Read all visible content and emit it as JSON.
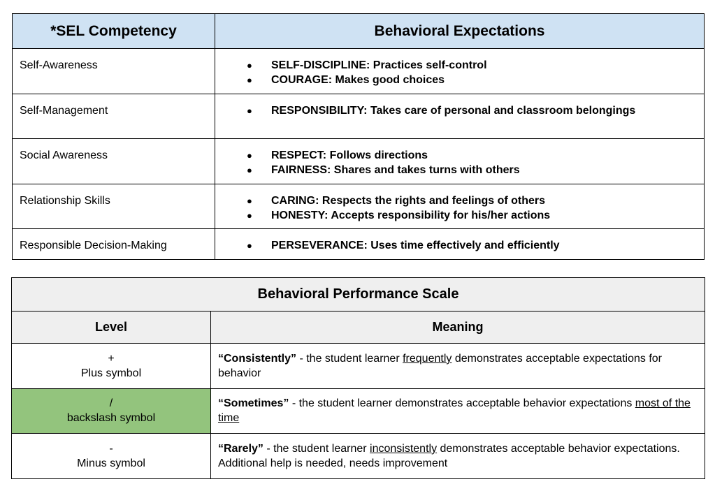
{
  "sel_table": {
    "headers": {
      "competency": "*SEL Competency",
      "expectations": "Behavioral Expectations"
    },
    "rows": [
      {
        "competency": "Self-Awareness",
        "expectations": [
          "SELF-DISCIPLINE: Practices self-control",
          "COURAGE: Makes good choices"
        ]
      },
      {
        "competency": "Self-Management",
        "expectations": [
          "RESPONSIBILITY: Takes care of personal and classroom belongings"
        ]
      },
      {
        "competency": "Social Awareness",
        "expectations": [
          "RESPECT: Follows directions",
          "FAIRNESS: Shares and takes turns with others"
        ]
      },
      {
        "competency": "Relationship Skills",
        "expectations": [
          "CARING: Respects the rights and feelings of others",
          "HONESTY: Accepts responsibility for his/her actions"
        ]
      },
      {
        "competency": "Responsible Decision-Making",
        "expectations": [
          "PERSEVERANCE: Uses time effectively and efficiently"
        ]
      }
    ],
    "bullet_glyph": "●"
  },
  "scale_table": {
    "title": "Behavioral Performance Scale",
    "headers": {
      "level": "Level",
      "meaning": "Meaning"
    },
    "rows": [
      {
        "symbol": "+",
        "symbol_name": "Plus symbol",
        "highlighted": false,
        "term": "“Consistently”",
        "text_before": " - the student learner ",
        "underlined": "frequently",
        "text_after": " demonstrates acceptable expectations for behavior"
      },
      {
        "symbol": "/",
        "symbol_name": "backslash symbol",
        "highlighted": true,
        "term": "“Sometimes”",
        "text_before": " - the student learner demonstrates acceptable behavior expectations ",
        "underlined": "most of the time",
        "text_after": ""
      },
      {
        "symbol": "-",
        "symbol_name": "Minus symbol",
        "highlighted": false,
        "term": "“Rarely”",
        "text_before": " - the student learner ",
        "underlined": "inconsistently",
        "text_after": " demonstrates acceptable behavior expectations. Additional help is needed, needs improvement"
      }
    ],
    "highlight_color": "#93c47d"
  },
  "colors": {
    "sel_header_bg": "#cfe2f3",
    "scale_header_bg": "#efefef"
  }
}
